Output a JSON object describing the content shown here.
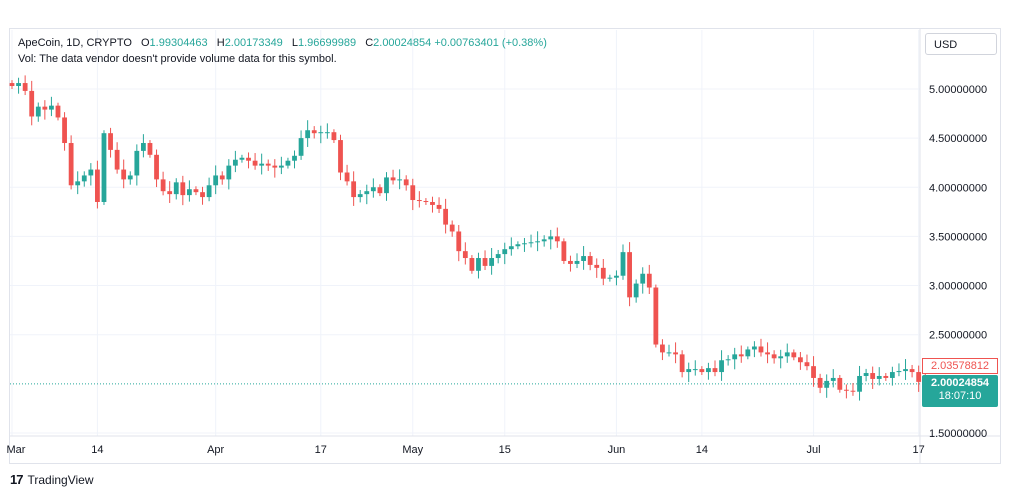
{
  "legend": {
    "title": "ApeCoin, 1D, CRYPTO",
    "open_label": "O",
    "open": "1.99304463",
    "high_label": "H",
    "high": "2.00173349",
    "low_label": "L",
    "low": "1.96699989",
    "close_label": "C",
    "close": "2.00024854",
    "change": "+0.00763401 (+0.38%)"
  },
  "volume_note": "Vol: The data vendor doesn't provide volume data for this symbol.",
  "currency": "USD",
  "price_tags": {
    "high_value": "2.03578812",
    "last_value": "2.00024854",
    "countdown": "18:07:10"
  },
  "brand": {
    "logo": "17",
    "name": "TradingView"
  },
  "colors": {
    "up": "#26a69a",
    "down": "#ef5350",
    "grid": "#f0f3fa",
    "axis_text": "#131722"
  },
  "chart_data": {
    "type": "candlestick",
    "title": "ApeCoin, 1D, CRYPTO",
    "ylim": [
      1.5,
      5.4
    ],
    "y_ticks": [
      "5.00000000",
      "4.50000000",
      "4.00000000",
      "3.50000000",
      "3.00000000",
      "2.50000000",
      "1.50000000"
    ],
    "y_tick_values": [
      5.0,
      4.5,
      4.0,
      3.5,
      3.0,
      2.5,
      1.5
    ],
    "x_ticks": [
      {
        "label": "Mar",
        "day": 0
      },
      {
        "label": "14",
        "day": 13
      },
      {
        "label": "Apr",
        "day": 31
      },
      {
        "label": "17",
        "day": 47
      },
      {
        "label": "May",
        "day": 61
      },
      {
        "label": "15",
        "day": 75
      },
      {
        "label": "Jun",
        "day": 92
      },
      {
        "label": "14",
        "day": 105
      },
      {
        "label": "Jul",
        "day": 122
      },
      {
        "label": "17",
        "day": 138
      }
    ],
    "last_price": 2.00024854,
    "closes": [
      5.03,
      5.06,
      4.98,
      4.72,
      4.82,
      4.79,
      4.83,
      4.71,
      4.45,
      4.02,
      4.06,
      4.12,
      4.18,
      3.85,
      4.55,
      4.38,
      4.18,
      4.08,
      4.12,
      4.37,
      4.45,
      4.33,
      4.08,
      3.96,
      3.93,
      4.05,
      3.92,
      3.98,
      3.95,
      3.9,
      4.02,
      4.12,
      4.08,
      4.22,
      4.28,
      4.3,
      4.27,
      4.22,
      4.24,
      4.22,
      4.2,
      4.22,
      4.27,
      4.32,
      4.5,
      4.58,
      4.55,
      4.56,
      4.56,
      4.48,
      4.15,
      4.06,
      3.9,
      3.93,
      3.96,
      4.0,
      3.94,
      4.1,
      4.07,
      4.08,
      4.02,
      3.87,
      3.86,
      3.85,
      3.82,
      3.78,
      3.62,
      3.55,
      3.35,
      3.28,
      3.15,
      3.28,
      3.2,
      3.28,
      3.32,
      3.37,
      3.4,
      3.42,
      3.43,
      3.44,
      3.45,
      3.47,
      3.5,
      3.45,
      3.25,
      3.22,
      3.25,
      3.3,
      3.21,
      3.18,
      3.07,
      3.08,
      3.1,
      3.34,
      2.88,
      3.02,
      3.12,
      2.98,
      2.4,
      2.32,
      2.32,
      2.3,
      2.12,
      2.15,
      2.15,
      2.12,
      2.16,
      2.12,
      2.24,
      2.25,
      2.3,
      2.28,
      2.35,
      2.38,
      2.32,
      2.3,
      2.26,
      2.28,
      2.32,
      2.27,
      2.22,
      2.18,
      2.06,
      1.96,
      2.03,
      2.06,
      1.94,
      1.93,
      1.92,
      2.08,
      2.11,
      2.05,
      2.08,
      2.06,
      2.12,
      2.13,
      2.15,
      2.12,
      2.02,
      2.0
    ]
  }
}
